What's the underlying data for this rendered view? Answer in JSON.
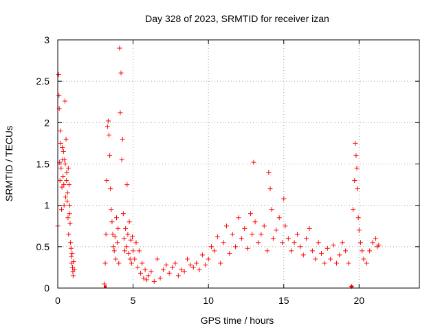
{
  "chart_data": {
    "type": "scatter",
    "title": "Day 328 of 2023, SRMTID for receiver izan",
    "xlabel": "GPS time / hours",
    "ylabel": "SRMTID / TECUs",
    "xlim": [
      0,
      24
    ],
    "ylim": [
      0,
      3
    ],
    "xticks": [
      0,
      5,
      10,
      15,
      20
    ],
    "yticks": [
      0,
      0.5,
      1,
      1.5,
      2,
      2.5,
      3
    ],
    "ytick_labels": [
      "0",
      "0.5",
      "1",
      "1.5",
      "2",
      "2.5",
      "3"
    ],
    "grid": true,
    "marker": "+",
    "marker_color": "#ff0000",
    "grid_color": "#a0a0a0",
    "series": [
      {
        "name": "izan",
        "x": [
          0.0,
          0.05,
          0.08,
          0.1,
          0.12,
          0.15,
          0.18,
          0.2,
          0.22,
          0.25,
          0.28,
          0.3,
          0.32,
          0.35,
          0.38,
          0.4,
          0.42,
          0.45,
          0.48,
          0.5,
          0.52,
          0.55,
          0.58,
          0.6,
          0.62,
          0.65,
          0.68,
          0.7,
          0.72,
          0.75,
          0.78,
          0.8,
          0.82,
          0.85,
          0.88,
          0.9,
          0.92,
          0.95,
          0.98,
          1.0,
          1.02,
          1.05,
          1.1,
          3.1,
          3.15,
          3.2,
          3.25,
          3.3,
          3.35,
          3.4,
          3.45,
          3.5,
          3.55,
          3.6,
          3.65,
          3.7,
          3.75,
          3.8,
          3.85,
          3.9,
          3.95,
          4.0,
          4.05,
          4.1,
          4.15,
          4.2,
          4.25,
          4.3,
          4.35,
          4.4,
          4.45,
          4.5,
          4.55,
          4.6,
          4.65,
          4.7,
          4.75,
          4.8,
          4.85,
          4.9,
          4.95,
          5.0,
          5.1,
          5.2,
          5.3,
          5.4,
          5.5,
          5.6,
          5.7,
          5.8,
          5.9,
          6.0,
          6.2,
          6.4,
          6.6,
          6.8,
          7.0,
          7.2,
          7.4,
          7.6,
          7.8,
          8.0,
          8.2,
          8.4,
          8.6,
          8.8,
          9.0,
          9.2,
          9.4,
          9.6,
          9.8,
          10.0,
          10.2,
          10.4,
          10.6,
          10.8,
          11.0,
          11.2,
          11.4,
          11.6,
          11.8,
          12.0,
          12.2,
          12.4,
          12.6,
          12.8,
          12.9,
          13.0,
          13.1,
          13.3,
          13.5,
          13.7,
          13.9,
          14.0,
          14.1,
          14.2,
          14.3,
          14.5,
          14.7,
          14.9,
          15.0,
          15.1,
          15.3,
          15.5,
          15.7,
          15.9,
          16.1,
          16.3,
          16.5,
          16.7,
          16.9,
          17.1,
          17.3,
          17.5,
          17.7,
          17.9,
          18.1,
          18.3,
          18.5,
          18.7,
          18.9,
          19.1,
          19.3,
          19.5,
          19.6,
          19.7,
          19.75,
          19.8,
          19.85,
          19.9,
          19.95,
          20.0,
          20.1,
          20.2,
          20.3,
          20.5,
          20.7,
          20.9,
          21.1,
          21.2,
          21.3
        ],
        "y": [
          0.75,
          2.58,
          2.33,
          2.17,
          1.52,
          1.3,
          1.9,
          1.75,
          1.45,
          0.95,
          1.22,
          1.7,
          1.55,
          1.35,
          1.65,
          1.25,
          1.0,
          1.55,
          2.26,
          1.5,
          1.1,
          1.8,
          1.3,
          1.4,
          1.05,
          1.15,
          0.85,
          1.45,
          0.65,
          1.25,
          0.9,
          1.0,
          0.78,
          0.55,
          0.48,
          0.38,
          0.3,
          0.42,
          0.25,
          0.2,
          0.15,
          0.32,
          0.22,
          0.05,
          0.3,
          0.65,
          1.3,
          1.95,
          2.02,
          1.85,
          1.6,
          1.2,
          0.95,
          0.8,
          0.65,
          0.5,
          0.45,
          0.62,
          0.35,
          0.85,
          0.55,
          0.72,
          0.3,
          2.9,
          2.12,
          2.6,
          1.55,
          1.8,
          0.9,
          0.6,
          0.45,
          0.72,
          0.5,
          1.25,
          0.65,
          0.42,
          0.8,
          0.35,
          0.58,
          0.3,
          0.62,
          0.45,
          0.35,
          0.55,
          0.25,
          0.45,
          0.18,
          0.3,
          0.12,
          0.22,
          0.1,
          0.15,
          0.2,
          0.08,
          0.35,
          0.12,
          0.22,
          0.28,
          0.18,
          0.25,
          0.3,
          0.15,
          0.22,
          0.2,
          0.35,
          0.28,
          0.25,
          0.3,
          0.22,
          0.4,
          0.28,
          0.35,
          0.5,
          0.45,
          0.62,
          0.3,
          0.55,
          0.75,
          0.42,
          0.65,
          0.5,
          0.85,
          0.6,
          0.72,
          0.48,
          0.9,
          0.65,
          1.52,
          0.8,
          0.55,
          0.65,
          0.75,
          0.45,
          1.4,
          1.2,
          0.95,
          0.6,
          0.7,
          0.85,
          0.55,
          1.08,
          0.75,
          0.6,
          0.45,
          0.55,
          0.65,
          0.5,
          0.4,
          0.6,
          0.72,
          0.45,
          0.35,
          0.55,
          0.42,
          0.3,
          0.48,
          0.35,
          0.52,
          0.3,
          0.4,
          0.55,
          0.45,
          0.3,
          0.02,
          0.95,
          1.3,
          1.75,
          1.6,
          1.45,
          1.2,
          0.85,
          0.7,
          0.55,
          0.45,
          0.35,
          0.3,
          0.45,
          0.55,
          0.6,
          0.5,
          0.52
        ]
      }
    ],
    "zero_markers_x": [
      3.15,
      19.5
    ]
  }
}
